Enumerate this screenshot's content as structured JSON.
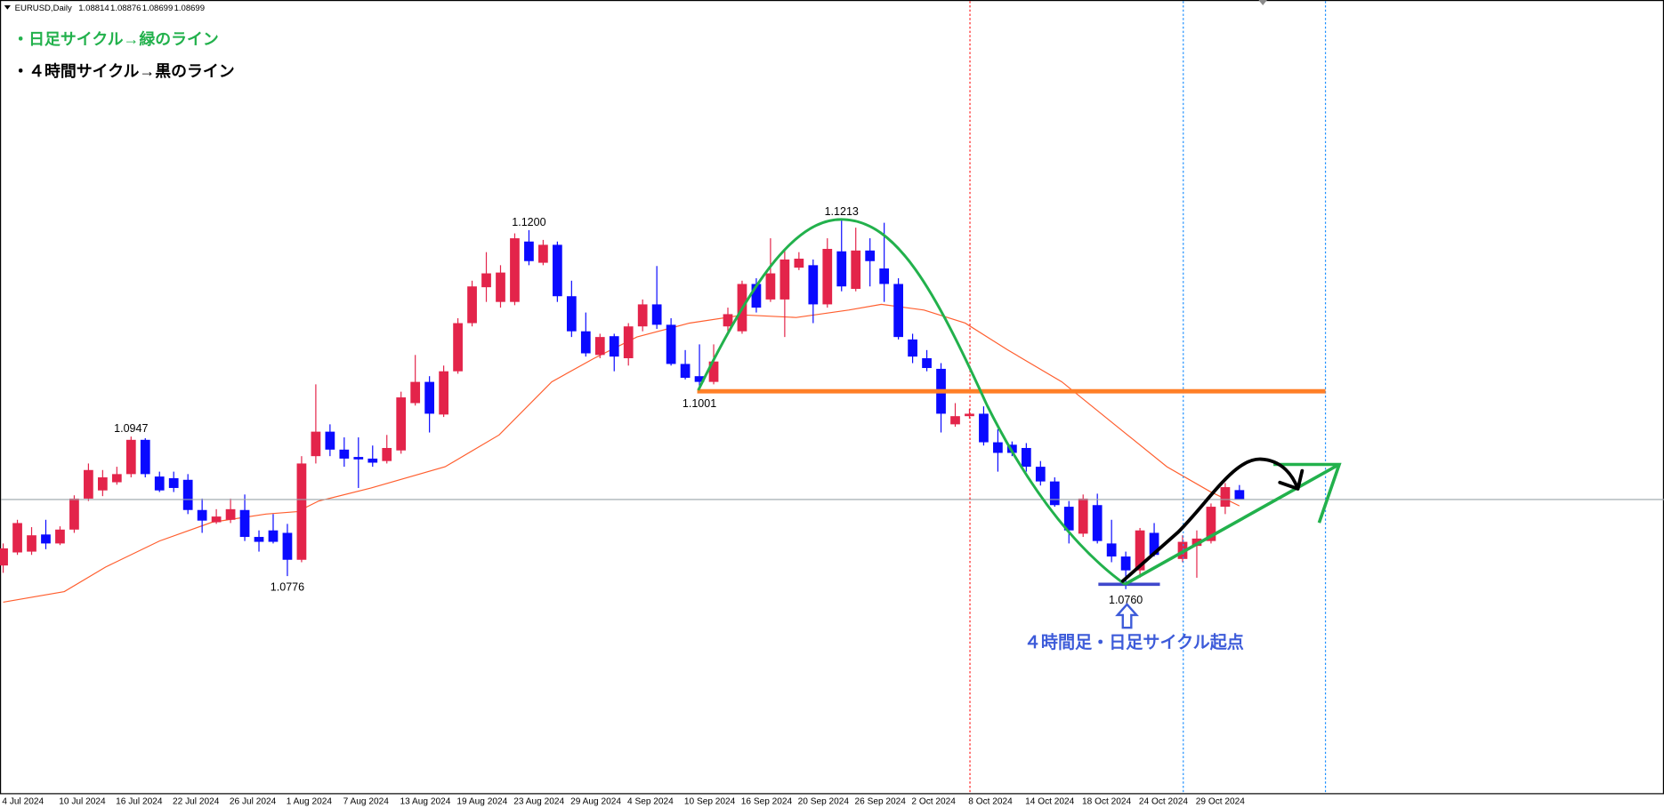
{
  "chart_data": {
    "type": "candlestick",
    "symbol": "EURUSD,Daily",
    "categories": [
      "4 Jul 2024",
      null,
      null,
      null,
      "10 Jul 2024",
      null,
      null,
      null,
      "16 Jul 2024",
      null,
      null,
      null,
      "22 Jul 2024",
      null,
      null,
      null,
      "26 Jul 2024",
      null,
      null,
      null,
      "1 Aug 2024",
      null,
      null,
      null,
      "7 Aug 2024",
      null,
      null,
      null,
      "13 Aug 2024",
      null,
      null,
      null,
      "19 Aug 2024",
      null,
      null,
      null,
      "23 Aug 2024",
      null,
      null,
      null,
      "29 Aug 2024",
      null,
      null,
      null,
      "4 Sep 2024",
      null,
      null,
      null,
      "10 Sep 2024",
      null,
      null,
      null,
      "16 Sep 2024",
      null,
      null,
      null,
      "20 Sep 2024",
      null,
      null,
      null,
      "26 Sep 2024",
      null,
      null,
      null,
      "2 Oct 2024",
      null,
      null,
      null,
      "8 Oct 2024",
      null,
      null,
      null,
      "14 Oct 2024",
      null,
      null,
      null,
      "18 Oct 2024",
      null,
      null,
      null,
      "24 Oct 2024",
      null,
      null,
      null,
      "29 Oct 2024",
      null,
      null,
      null
    ],
    "open": [
      1.0789,
      1.0805,
      1.0806,
      1.0827,
      1.0816,
      1.0833,
      1.0871,
      1.0881,
      1.0891,
      1.0901,
      1.0943,
      1.0898,
      1.0896,
      1.0894,
      1.0857,
      1.0842,
      1.0845,
      1.0857,
      1.0824,
      1.0832,
      1.0829,
      1.0796,
      1.0923,
      1.0953,
      1.0931,
      1.0922,
      1.092,
      1.0917,
      1.093,
      1.0988,
      1.1014,
      1.0974,
      1.1027,
      1.1086,
      1.113,
      1.1112,
      1.1112,
      1.1186,
      1.116,
      1.1182,
      1.1119,
      1.1076,
      1.1047,
      1.107,
      1.1043,
      1.1082,
      1.1109,
      1.1084,
      1.1036,
      1.1021,
      1.1014,
      1.1082,
      1.1076,
      1.1134,
      1.1115,
      1.1115,
      1.1154,
      1.1157,
      1.1109,
      1.1174,
      1.1128,
      1.1175,
      1.1153,
      1.1134,
      1.1066,
      1.1043,
      1.103,
      1.0962,
      1.0972,
      1.0975,
      1.094,
      1.0937,
      1.0933,
      1.091,
      1.0892,
      1.0861,
      1.0828,
      1.0863,
      1.0816,
      1.08,
      1.0783,
      1.0829,
      null,
      1.0797,
      1.0813,
      1.0819,
      1.0861,
      1.08814
    ],
    "high": [
      1.0816,
      1.0845,
      1.0836,
      1.0845,
      1.0837,
      1.0875,
      1.0914,
      1.0906,
      1.091,
      1.0947,
      1.0945,
      1.0904,
      1.0904,
      1.0901,
      1.0871,
      1.0858,
      1.0871,
      1.0876,
      1.0832,
      1.0852,
      1.084,
      1.0923,
      1.1011,
      1.0962,
      1.0946,
      1.0946,
      1.0936,
      1.0949,
      1.1002,
      1.1047,
      1.1021,
      1.1034,
      1.1092,
      1.1138,
      1.1173,
      1.1157,
      1.1196,
      1.12,
      1.1188,
      1.1186,
      1.1138,
      1.1099,
      1.1073,
      1.1073,
      1.1086,
      1.1115,
      1.1156,
      1.1092,
      1.1053,
      1.106,
      1.106,
      1.1105,
      1.1138,
      1.1141,
      1.119,
      1.1177,
      1.1173,
      1.1164,
      1.119,
      1.1213,
      1.1203,
      1.119,
      1.1209,
      1.1141,
      1.1073,
      1.1053,
      1.1037,
      1.0988,
      1.0981,
      1.0984,
      1.0956,
      1.0941,
      1.0939,
      1.0917,
      1.0897,
      1.0868,
      1.0876,
      1.0877,
      1.0845,
      1.0806,
      1.0835,
      1.0841,
      null,
      1.0826,
      1.0832,
      1.0865,
      1.089,
      1.08876
    ],
    "low": [
      1.078,
      1.0802,
      1.0802,
      1.0809,
      1.0814,
      1.0829,
      1.0868,
      1.0874,
      1.0888,
      1.0897,
      1.0897,
      1.0879,
      1.0879,
      1.0852,
      1.0829,
      1.084,
      1.0841,
      1.0819,
      1.0806,
      1.0816,
      1.0776,
      1.0793,
      1.0914,
      1.0923,
      1.091,
      1.0884,
      1.091,
      1.0914,
      1.0926,
      1.0985,
      1.0952,
      1.0971,
      1.1024,
      1.1082,
      1.1112,
      1.1105,
      1.1108,
      1.1157,
      1.1157,
      1.1112,
      1.1069,
      1.1045,
      1.1043,
      1.1027,
      1.1034,
      1.1076,
      1.1079,
      1.1034,
      1.1017,
      1.1001,
      1.1011,
      1.1076,
      1.1073,
      1.1099,
      1.1112,
      1.1069,
      1.1151,
      1.1086,
      1.1105,
      1.1125,
      1.1125,
      1.1131,
      1.1112,
      1.1066,
      1.1037,
      1.1027,
      1.0952,
      1.0959,
      1.0969,
      1.0936,
      1.0904,
      1.0923,
      1.0904,
      1.0887,
      1.0861,
      1.0816,
      1.0824,
      1.0816,
      1.0793,
      1.076,
      1.0774,
      1.08,
      null,
      1.0793,
      1.0774,
      1.0816,
      1.0852,
      1.08699
    ],
    "close": [
      1.081,
      1.0841,
      1.0826,
      1.0816,
      1.0833,
      1.0871,
      1.0906,
      1.0897,
      1.0901,
      1.0943,
      1.0901,
      1.0881,
      1.0884,
      1.0857,
      1.0844,
      1.0849,
      1.0858,
      1.0824,
      1.0818,
      1.0818,
      1.0796,
      1.0914,
      1.0953,
      1.0931,
      1.092,
      1.0919,
      1.0915,
      1.0933,
      1.0995,
      1.1014,
      1.0975,
      1.1027,
      1.1086,
      1.1131,
      1.1147,
      1.1148,
      1.119,
      1.1162,
      1.1182,
      1.1119,
      1.1076,
      1.1049,
      1.1069,
      1.1045,
      1.1082,
      1.1109,
      1.1084,
      1.1036,
      1.1019,
      1.1014,
      1.1039,
      1.1097,
      1.1134,
      1.1105,
      1.1147,
      1.1164,
      1.1165,
      1.1109,
      1.1177,
      1.1131,
      1.1175,
      1.1162,
      1.1134,
      1.1069,
      1.1045,
      1.1031,
      1.0975,
      1.0972,
      1.0975,
      1.094,
      1.0927,
      1.0927,
      1.091,
      1.0892,
      1.0863,
      1.0832,
      1.0871,
      1.0819,
      1.08,
      1.0783,
      1.0832,
      1.0802,
      null,
      1.0818,
      1.0822,
      1.0861,
      1.0885,
      1.08699
    ],
    "up_color": "#e3244a",
    "down_color": "#0a0aff",
    "ma": {
      "color": "#ff5e2e",
      "x": [
        0,
        4.3,
        7.2,
        11,
        14.7,
        18.5,
        20.7,
        22.2,
        25.9,
        31.1,
        34.9,
        38.6,
        41.6,
        44.6,
        48.3,
        52.1,
        55.8,
        59.5,
        61.8,
        64.8,
        67.7,
        70.7,
        74.5,
        78.2,
        81.9,
        84.9,
        87
      ],
      "values": [
        1.0744,
        1.0757,
        1.0787,
        1.0819,
        1.0842,
        1.0852,
        1.0855,
        1.0868,
        1.0884,
        1.091,
        1.0949,
        1.1014,
        1.1043,
        1.1069,
        1.1086,
        1.1096,
        1.1093,
        1.1102,
        1.1109,
        1.1102,
        1.1086,
        1.1053,
        1.1014,
        1.0962,
        1.091,
        1.088,
        1.0862
      ]
    },
    "ylim": [
      1.051,
      1.1482
    ],
    "bid_line_color": "#9aa4aa",
    "price_labels": [
      {
        "value": 1.0947,
        "label": "1.0947"
      },
      {
        "value": 1.0776,
        "label": "1.0776"
      },
      {
        "value": 1.12,
        "label": "1.1200"
      },
      {
        "value": 1.1213,
        "label": "1.1213"
      },
      {
        "value": 1.1001,
        "label": "1.1001"
      },
      {
        "value": 1.076,
        "label": "1.0760"
      }
    ],
    "annotations": {
      "daily_cycle": "・日足サイクル→緑のライン",
      "h4_cycle": "・４時間サイクル→黒のライン",
      "start_point": "４時間足・日足サイクル起点"
    }
  }
}
